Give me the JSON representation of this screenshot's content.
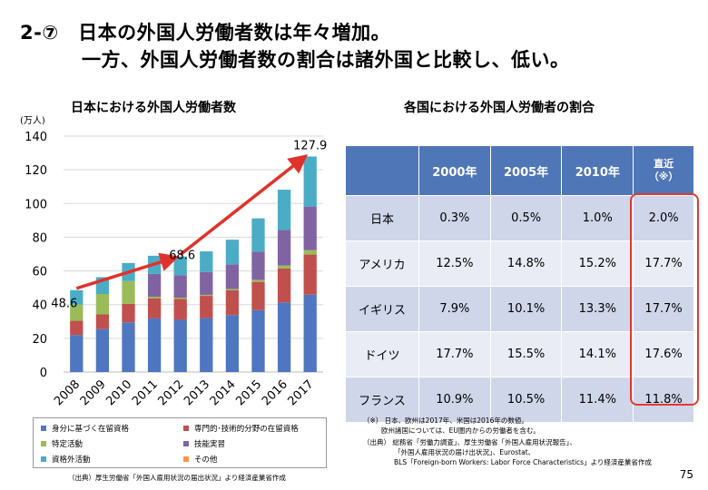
{
  "title_line1": "2-⑦　日本の外国人労働者数は年々増加。",
  "title_line2": "一方、外国人労働者数の割合は諸外国と比較し、低い。",
  "chart_data": {
    "type": "bar",
    "stacked": true,
    "title": "日本における外国人労働者数",
    "unit_label": "(万人)",
    "ylim": [
      0,
      140
    ],
    "yticks": [
      0,
      20,
      40,
      60,
      80,
      100,
      120,
      140
    ],
    "categories": [
      "2008",
      "2009",
      "2010",
      "2011",
      "2012",
      "2013",
      "2014",
      "2015",
      "2016",
      "2017"
    ],
    "series": [
      {
        "name": "身分に基づく在留資格",
        "color": "#4f76c0",
        "values": [
          22.0,
          25.5,
          29.5,
          31.8,
          31.0,
          32.0,
          33.8,
          36.7,
          41.3,
          45.9
        ]
      },
      {
        "name": "専門的･技術的分野の在留資格",
        "color": "#c0504d",
        "values": [
          8.4,
          8.7,
          11.0,
          12.0,
          12.4,
          13.2,
          14.7,
          16.8,
          20.1,
          23.8
        ]
      },
      {
        "name": "特定活動",
        "color": "#9bbb59",
        "values": [
          9.6,
          12.1,
          13.5,
          0.9,
          0.7,
          0.6,
          0.8,
          1.2,
          1.8,
          2.7
        ]
      },
      {
        "name": "技能実習",
        "color": "#8064a2",
        "values": [
          0.0,
          0.0,
          0.0,
          13.5,
          13.4,
          13.6,
          14.6,
          16.8,
          21.1,
          25.8
        ]
      },
      {
        "name": "資格外活動",
        "color": "#4bacc6",
        "values": [
          8.6,
          10.0,
          10.7,
          10.8,
          11.1,
          12.2,
          14.6,
          19.7,
          23.9,
          29.7
        ]
      },
      {
        "name": "その他",
        "color": "#f79646",
        "values": [
          0.0,
          0.0,
          0.0,
          0.0,
          0.0,
          0.0,
          0.1,
          0.0,
          0.0,
          0.0
        ]
      }
    ],
    "annotations": [
      {
        "label": "48.6",
        "category": "2008",
        "value": 48.6
      },
      {
        "label": "68.6",
        "category": "2012",
        "value": 68.6
      },
      {
        "label": "127.9",
        "category": "2017",
        "value": 127.9
      }
    ]
  },
  "left_source": "（出典）厚生労働省「外国人雇用状況の届出状況」より経済産業省作成",
  "table": {
    "title": "各国における外国人労働者の割合",
    "headers": [
      "",
      "2000年",
      "2005年",
      "2010年",
      "直近\n（※）"
    ],
    "rows": [
      [
        "日本",
        "0.3%",
        "0.5%",
        "1.0%",
        "2.0%"
      ],
      [
        "アメリカ",
        "12.5%",
        "14.8%",
        "15.2%",
        "17.7%"
      ],
      [
        "イギリス",
        "7.9%",
        "10.1%",
        "13.3%",
        "17.7%"
      ],
      [
        "ドイツ",
        "17.7%",
        "15.5%",
        "14.1%",
        "17.6%"
      ],
      [
        "フランス",
        "10.9%",
        "10.5%",
        "11.4%",
        "11.8%"
      ]
    ]
  },
  "notes": {
    "n1": "（※） 日本、欧州は2017年、米国は2016年の数値。",
    "n2": "欧州諸国については、EU圏内からの労働者を含む。",
    "n3": "（出典） 総務省「労働力調査」、厚生労働省「外国人雇用状況報告」、",
    "n4": "「外国人雇用状況の届け出状況」、Eurostat、",
    "n5": "BLS「Foreign-born Workers: Labor Force Characteristics」より経済産業省作成"
  },
  "page_number": "75",
  "colors": {
    "arrow": "#e0322a",
    "table_header": "#4f76b7",
    "highlight": "#e23b2e"
  }
}
